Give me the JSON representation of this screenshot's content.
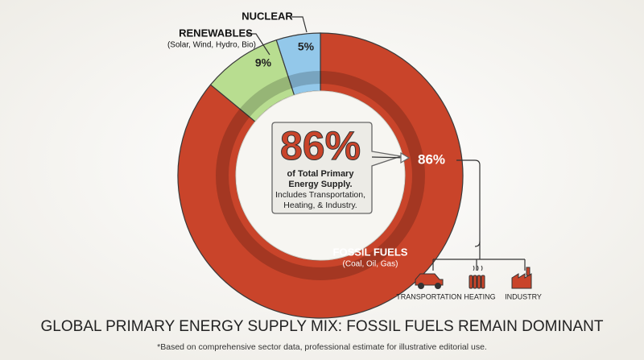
{
  "chart_data": {
    "type": "donut",
    "title": "GLOBAL PRIMARY ENERGY SUPPLY MIX: FOSSIL FUELS REMAIN DOMINANT",
    "footnote": "*Based on comprehensive sector data, professional estimate for illustrative editorial use.",
    "categories": [
      "FOSSIL FUELS",
      "RENEWABLES",
      "NUCLEAR"
    ],
    "sublabels": [
      "(Coal, Oil, Gas)",
      "(Solar, Wind, Hydro, Bio)",
      null
    ],
    "values": [
      86,
      9,
      5
    ],
    "value_labels": [
      "86%",
      "9%",
      "5%"
    ],
    "colors": [
      "#c9442a",
      "#b8dd90",
      "#93c8ea"
    ],
    "callout": {
      "headline": "86%",
      "bold_lines": [
        "of Total Primary",
        "Energy Supply."
      ],
      "lines": [
        "Includes Transportation,",
        "Heating, & Industry."
      ]
    },
    "uses": [
      "TRANSPORTATION",
      "HEATING",
      "INDUSTRY"
    ]
  }
}
